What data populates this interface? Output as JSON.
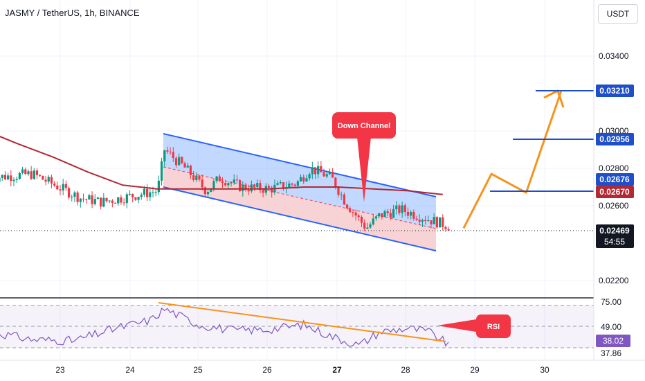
{
  "header": {
    "title": "JASMY / TetherUS, 1h, BINANCE",
    "currency": "USDT"
  },
  "colors": {
    "bull": "#089981",
    "bear": "#f23645",
    "ma": "#b22833",
    "channel_upper_fill": "#90b8ff",
    "channel_lower_fill": "#f4bcc0",
    "channel_line": "#2962ff",
    "projection": "#f7931a",
    "level_blue": "#1e4fc9",
    "level_red": "#b22833",
    "callout": "#f23645",
    "rsi_line": "#7e57c2",
    "rsi_trend": "#f7931a"
  },
  "chart_data": [
    {
      "type": "candlestick",
      "title": "JASMY / TetherUS, 1h, BINANCE",
      "x_ticks": [
        "23",
        "24",
        "25",
        "26",
        "27",
        "28",
        "29",
        "30"
      ],
      "y_ticks": [
        "0.03400",
        "0.03000",
        "0.02800",
        "0.02600",
        "0.02200"
      ],
      "ylim": [
        0.0213,
        0.0363
      ],
      "current_price": "0.02469",
      "countdown": "54:55",
      "levels": [
        {
          "label": "0.03210",
          "value": 0.0321,
          "color": "blue"
        },
        {
          "label": "0.02956",
          "value": 0.02956,
          "color": "blue"
        },
        {
          "label": "0.02676",
          "value": 0.02676,
          "color": "blue"
        },
        {
          "label": "0.02670",
          "value": 0.0267,
          "color": "red"
        }
      ],
      "channel": {
        "label": "Down Channel",
        "upper_start": 0.0298,
        "upper_end": 0.0265,
        "lower_start": 0.0268,
        "lower_end": 0.0236
      },
      "moving_average": [
        [
          22.0,
          0.0299
        ],
        [
          22.4,
          0.0293
        ],
        [
          22.9,
          0.0286
        ],
        [
          23.4,
          0.0278
        ],
        [
          23.9,
          0.0271
        ],
        [
          24.4,
          0.0269
        ],
        [
          25.0,
          0.0269
        ],
        [
          25.5,
          0.0269
        ],
        [
          26.0,
          0.0269
        ],
        [
          26.5,
          0.027
        ],
        [
          27.0,
          0.027
        ],
        [
          27.5,
          0.0269
        ],
        [
          28.0,
          0.0268
        ],
        [
          28.5,
          0.0266
        ]
      ],
      "projection_path": [
        [
          28.8,
          0.0248
        ],
        [
          29.2,
          0.0277
        ],
        [
          29.7,
          0.0267
        ],
        [
          30.2,
          0.0321
        ]
      ]
    },
    {
      "type": "line",
      "title": "RSI",
      "y_ticks": [
        "75.00",
        "49.00",
        "37.86"
      ],
      "current_value": "38.02",
      "ylim": [
        34,
        78
      ],
      "levels": [
        75,
        49,
        37.86
      ],
      "trendline": [
        [
          24.45,
          76
        ],
        [
          28.55,
          41
        ]
      ],
      "label": "RSI"
    }
  ]
}
